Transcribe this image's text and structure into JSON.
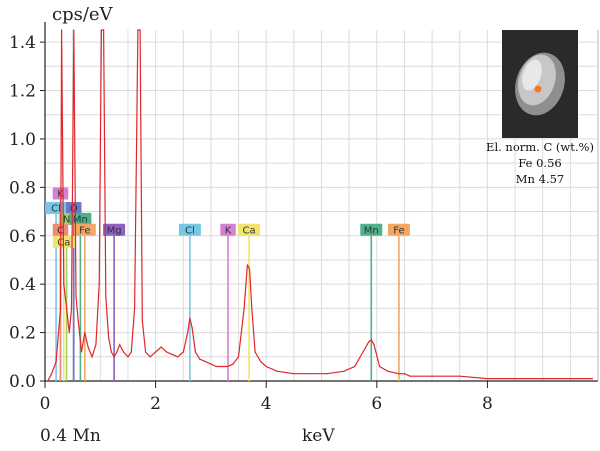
{
  "chart_data": {
    "type": "line",
    "ylabel": "cps/eV",
    "xlabel": "keV",
    "xlim": [
      0,
      10
    ],
    "ylim": [
      0,
      1.45
    ],
    "xticks": [
      0,
      2,
      4,
      6,
      8
    ],
    "yticks": [
      0.0,
      0.2,
      0.4,
      0.6,
      0.8,
      1.0,
      1.2,
      1.4
    ],
    "ytick_labels": [
      "0.0",
      "0.2",
      "0.4",
      "0.6",
      "0.8",
      "1.0",
      "1.2",
      "1.4"
    ],
    "grid": true,
    "footer_left": "0.4 Mn",
    "series_color": "#e0262b",
    "spectrum": {
      "x": [
        0.05,
        0.12,
        0.2,
        0.28,
        0.3,
        0.34,
        0.39,
        0.44,
        0.48,
        0.52,
        0.56,
        0.6,
        0.66,
        0.72,
        0.78,
        0.85,
        0.92,
        0.98,
        1.02,
        1.06,
        1.1,
        1.15,
        1.2,
        1.25,
        1.3,
        1.35,
        1.42,
        1.5,
        1.56,
        1.62,
        1.68,
        1.72,
        1.76,
        1.82,
        1.9,
        2.0,
        2.1,
        2.2,
        2.3,
        2.4,
        2.5,
        2.58,
        2.62,
        2.66,
        2.72,
        2.8,
        2.9,
        3.0,
        3.1,
        3.2,
        3.3,
        3.4,
        3.5,
        3.6,
        3.66,
        3.7,
        3.74,
        3.8,
        3.9,
        4.0,
        4.2,
        4.5,
        4.8,
        5.1,
        5.4,
        5.6,
        5.75,
        5.85,
        5.9,
        5.95,
        6.05,
        6.2,
        6.4,
        6.5,
        6.6,
        7.0,
        7.5,
        8.0,
        8.5,
        9.0,
        9.5,
        9.9
      ],
      "y": [
        0.0,
        0.03,
        0.08,
        0.3,
        1.45,
        0.4,
        0.3,
        0.2,
        0.3,
        1.45,
        0.35,
        0.25,
        0.12,
        0.2,
        0.14,
        0.1,
        0.15,
        0.4,
        1.45,
        1.45,
        0.35,
        0.18,
        0.12,
        0.1,
        0.12,
        0.15,
        0.12,
        0.1,
        0.12,
        0.3,
        1.45,
        1.45,
        0.25,
        0.12,
        0.1,
        0.12,
        0.14,
        0.12,
        0.11,
        0.1,
        0.12,
        0.2,
        0.26,
        0.22,
        0.12,
        0.09,
        0.08,
        0.07,
        0.06,
        0.06,
        0.06,
        0.07,
        0.1,
        0.3,
        0.48,
        0.46,
        0.3,
        0.12,
        0.08,
        0.06,
        0.04,
        0.03,
        0.03,
        0.03,
        0.04,
        0.06,
        0.12,
        0.16,
        0.17,
        0.15,
        0.06,
        0.04,
        0.03,
        0.03,
        0.02,
        0.02,
        0.02,
        0.01,
        0.01,
        0.01,
        0.01,
        0.01
      ]
    },
    "element_markers": [
      {
        "label": "K",
        "x": 0.28,
        "top": 0.75,
        "color": "#d580d0"
      },
      {
        "label": "Cl",
        "x": 0.2,
        "top": 0.69,
        "color": "#79c7e6"
      },
      {
        "label": "O",
        "x": 0.52,
        "top": 0.69,
        "color": "#6f75c7"
      },
      {
        "label": "N",
        "x": 0.39,
        "top": 0.645,
        "color": "#9fd06a"
      },
      {
        "label": "Mn",
        "x": 0.64,
        "top": 0.645,
        "color": "#4fb18a"
      },
      {
        "label": "C",
        "x": 0.28,
        "top": 0.6,
        "color": "#f08a73"
      },
      {
        "label": "Fe",
        "x": 0.72,
        "top": 0.6,
        "color": "#f4a764"
      },
      {
        "label": "Ca",
        "x": 0.34,
        "top": 0.55,
        "color": "#f2e46b"
      },
      {
        "label": "Mg",
        "x": 1.25,
        "top": 0.6,
        "color": "#8f5fc1"
      },
      {
        "label": "Cl",
        "x": 2.62,
        "top": 0.6,
        "color": "#79c7e6"
      },
      {
        "label": "K",
        "x": 3.31,
        "top": 0.6,
        "color": "#d580d0"
      },
      {
        "label": "Ca",
        "x": 3.69,
        "top": 0.6,
        "color": "#f2e46b"
      },
      {
        "label": "Mn",
        "x": 5.9,
        "top": 0.6,
        "color": "#4fb18a"
      },
      {
        "label": "Fe",
        "x": 6.4,
        "top": 0.6,
        "color": "#f4a764"
      }
    ]
  },
  "inset": {
    "lines": [
      "El. norm. C (wt.%)",
      "Fe 0.56",
      "Mn 4.57"
    ],
    "marker_color": "#f07a23"
  }
}
